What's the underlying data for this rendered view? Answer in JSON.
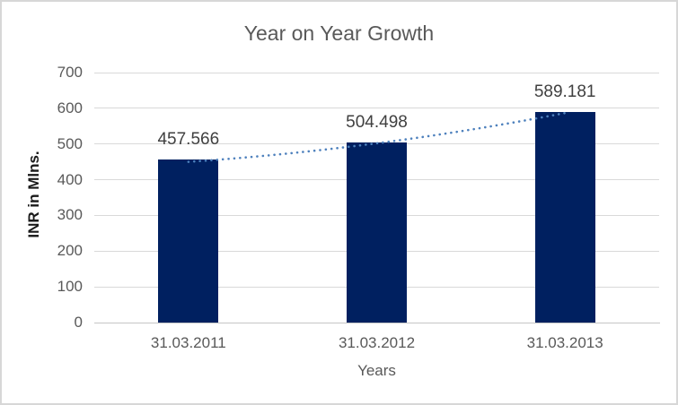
{
  "chart_data": {
    "type": "bar",
    "title": "Year on Year Growth",
    "xlabel": "Years",
    "ylabel": "INR in Mlns.",
    "categories": [
      "31.03.2011",
      "31.03.2012",
      "31.03.2013"
    ],
    "values": [
      457.566,
      504.498,
      589.181
    ],
    "data_labels": [
      "457.566",
      "504.498",
      "589.181"
    ],
    "ylim": [
      0,
      700
    ],
    "yticks": [
      0,
      100,
      200,
      300,
      400,
      500,
      600,
      700
    ],
    "grid": true,
    "legend": "none",
    "trendline": {
      "style": "dotted",
      "color": "#4E81BD"
    },
    "colors": {
      "bar": "#002060",
      "grid": "#D9D9D9",
      "axis_line": "#C6C6C6",
      "tick_text": "#595959",
      "label_text": "#404040",
      "title_text": "#595959",
      "frame_border": "#D7D7D7"
    }
  }
}
